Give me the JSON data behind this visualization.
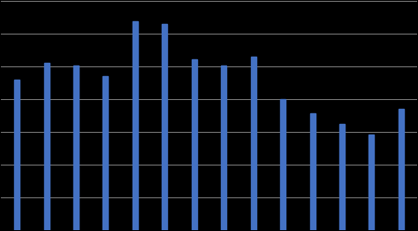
{
  "values": [
    72,
    80,
    79,
    74,
    100,
    99,
    82,
    79,
    83,
    63,
    56,
    51,
    46,
    58
  ],
  "bar_color": "#4472C4",
  "background_color": "#000000",
  "plot_bg_color": "#000000",
  "grid_color": "#7F7F7F",
  "ylim": [
    0,
    110
  ],
  "bar_width": 0.18,
  "figsize": [
    4.73,
    2.61
  ],
  "dpi": 100,
  "grid_linewidth": 0.7,
  "n_gridlines": 7
}
